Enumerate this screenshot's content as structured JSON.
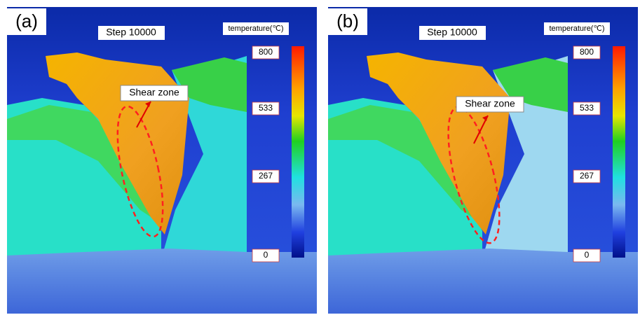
{
  "panels": [
    {
      "label": "(a)",
      "step": "Step 10000",
      "annotation": "Shear zone",
      "colorbar": {
        "title": "temperature(℃)",
        "ticks": [
          800,
          533,
          267,
          0
        ]
      }
    },
    {
      "label": "(b)",
      "step": "Step 10000",
      "annotation": "Shear zone",
      "colorbar": {
        "title": "temperature(℃)",
        "ticks": [
          800,
          533,
          267,
          0
        ]
      }
    }
  ]
}
